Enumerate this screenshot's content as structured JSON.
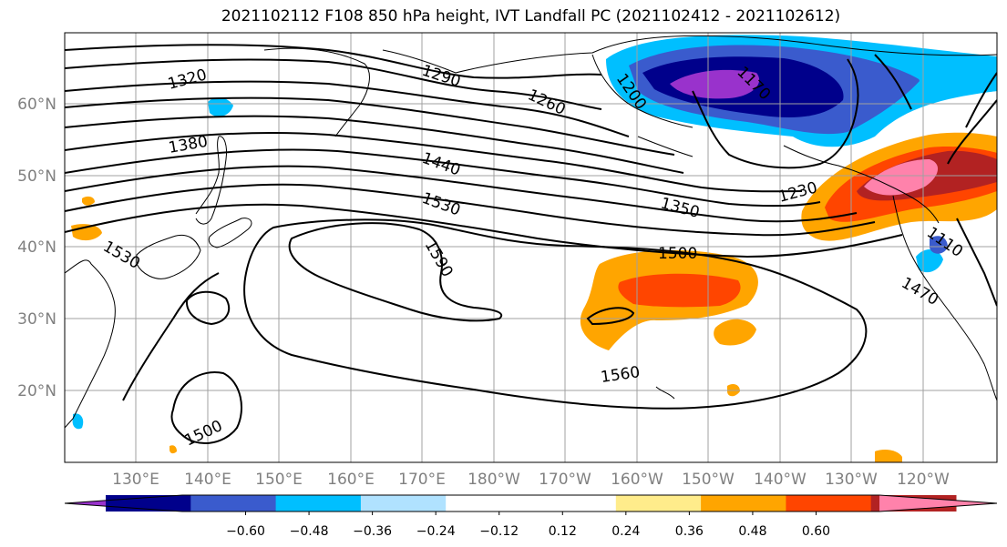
{
  "title": "2021102112 F108 850 hPa height, IVT Landfall PC (2021102412 - 2021102612)",
  "lat_labels": [
    "60°N",
    "50°N",
    "40°N",
    "30°N",
    "20°N"
  ],
  "lon_labels": [
    "130°E",
    "140°E",
    "150°E",
    "160°E",
    "170°E",
    "180°W",
    "170°W",
    "160°W",
    "150°W",
    "140°W",
    "130°W",
    "120°W"
  ],
  "colorbar": {
    "colors": [
      "#9932cc",
      "#00008b",
      "#3a5bcd",
      "#00bfff",
      "#b0e2ff",
      "#ffffff",
      "#ffffff",
      "#ffec8b",
      "#ffa500",
      "#ff4500",
      "#b22222",
      "#ff82ab"
    ],
    "tick_labels": [
      "-0.60",
      "-0.48",
      "-0.36",
      "-0.24",
      "-0.12",
      "0.12",
      "0.24",
      "0.36",
      "0.48",
      "0.60"
    ]
  },
  "contour_labels": [
    "1320",
    "1290",
    "1260",
    "1200",
    "1170",
    "1380",
    "1440",
    "1530",
    "1590",
    "1230",
    "1350",
    "1500",
    "1110",
    "1530",
    "1470",
    "1560",
    "1500"
  ]
}
